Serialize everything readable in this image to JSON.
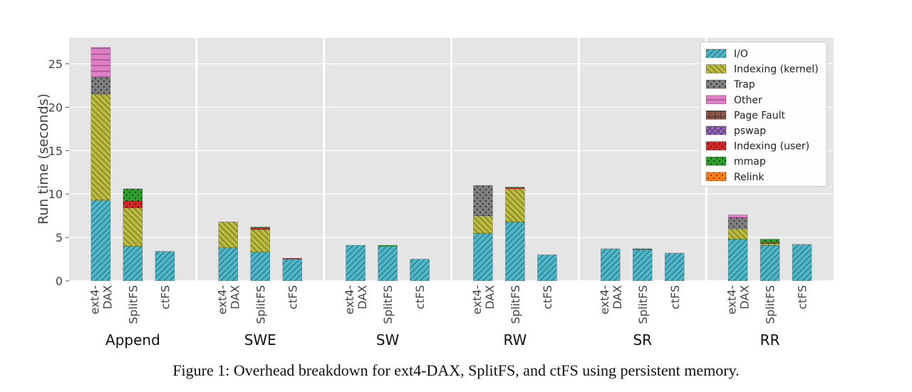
{
  "caption": "Figure 1: Overhead breakdown for ext4-DAX, SplitFS, and ctFS using persistent memory.",
  "chart_data": {
    "type": "bar",
    "stacked": true,
    "ylabel": "Run time (seconds)",
    "ylim": [
      0,
      28
    ],
    "yticks": [
      "0",
      "5",
      "10",
      "15",
      "20",
      "25"
    ],
    "grid": true,
    "legend_position": "top-right",
    "groups": [
      "Append",
      "SWE",
      "SW",
      "RW",
      "SR",
      "RR"
    ],
    "systems": [
      [
        "ext4-",
        "DAX"
      ],
      [
        "SplitFS"
      ],
      [
        "ctFS"
      ]
    ],
    "series": [
      {
        "name": "I/O",
        "color": "#4fb7c8",
        "pattern": "slash",
        "values": [
          [
            9.3,
            4.0,
            3.4
          ],
          [
            3.8,
            3.3,
            2.5
          ],
          [
            4.1,
            4.0,
            2.5
          ],
          [
            5.5,
            6.8,
            3.0
          ],
          [
            3.7,
            3.6,
            3.2
          ],
          [
            4.8,
            4.1,
            4.2
          ]
        ]
      },
      {
        "name": "Indexing (kernel)",
        "color": "#bcbc3c",
        "pattern": "backslash",
        "values": [
          [
            12.2,
            4.4,
            0
          ],
          [
            3.0,
            2.6,
            0
          ],
          [
            0,
            0,
            0
          ],
          [
            2.0,
            3.8,
            0
          ],
          [
            0,
            0,
            0
          ],
          [
            1.2,
            0.2,
            0
          ]
        ]
      },
      {
        "name": "Trap",
        "color": "#7f7f7f",
        "pattern": "dots",
        "values": [
          [
            2.0,
            0,
            0
          ],
          [
            0,
            0,
            0
          ],
          [
            0,
            0,
            0
          ],
          [
            3.5,
            0,
            0
          ],
          [
            0,
            0,
            0
          ],
          [
            1.3,
            0,
            0
          ]
        ]
      },
      {
        "name": "Other",
        "color": "#e07fc7",
        "pattern": "hline",
        "values": [
          [
            3.4,
            0,
            0
          ],
          [
            0,
            0,
            0
          ],
          [
            0,
            0,
            0
          ],
          [
            0,
            0,
            0
          ],
          [
            0,
            0,
            0
          ],
          [
            0.3,
            0,
            0
          ]
        ]
      },
      {
        "name": "Page Fault",
        "color": "#8c564b",
        "pattern": "grid",
        "values": [
          [
            0,
            0,
            0
          ],
          [
            0,
            0.1,
            0
          ],
          [
            0,
            0,
            0
          ],
          [
            0,
            0,
            0
          ],
          [
            0,
            0,
            0
          ],
          [
            0,
            0,
            0
          ]
        ]
      },
      {
        "name": "pswap",
        "color": "#9467bd",
        "pattern": "cross",
        "values": [
          [
            0,
            0,
            0
          ],
          [
            0,
            0,
            0
          ],
          [
            0,
            0,
            0
          ],
          [
            0,
            0,
            0
          ],
          [
            0,
            0,
            0
          ],
          [
            0,
            0,
            0
          ]
        ]
      },
      {
        "name": "Indexing (user)",
        "color": "#d62728",
        "pattern": "dots",
        "values": [
          [
            0,
            0.8,
            0
          ],
          [
            0,
            0.1,
            0.1
          ],
          [
            0,
            0,
            0
          ],
          [
            0,
            0.1,
            0
          ],
          [
            0,
            0,
            0
          ],
          [
            0,
            0.1,
            0
          ]
        ]
      },
      {
        "name": "mmap",
        "color": "#2ca02c",
        "pattern": "dots",
        "values": [
          [
            0,
            1.4,
            0
          ],
          [
            0,
            0.1,
            0
          ],
          [
            0,
            0.1,
            0
          ],
          [
            0,
            0.1,
            0
          ],
          [
            0,
            0.1,
            0
          ],
          [
            0,
            0.4,
            0
          ]
        ]
      },
      {
        "name": "Relink",
        "color": "#ff7f0e",
        "pattern": "dots",
        "values": [
          [
            0,
            0,
            0
          ],
          [
            0,
            0,
            0
          ],
          [
            0,
            0,
            0
          ],
          [
            0,
            0,
            0
          ],
          [
            0,
            0,
            0
          ],
          [
            0,
            0,
            0
          ]
        ]
      }
    ]
  }
}
